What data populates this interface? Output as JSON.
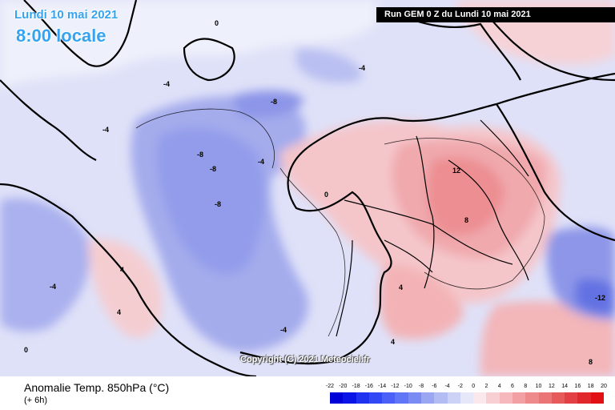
{
  "header": {
    "date": "Lundi 10 mai 2021",
    "local_time": "8:00 locale",
    "run": "Run GEM 0 Z du Lundi 10 mai 2021"
  },
  "map": {
    "copyright": "Copyright (C) 2021 Meteociel.fr",
    "labels": [
      "0",
      "-4",
      "-8",
      "-12",
      "4",
      "8",
      "12",
      "0",
      "-4",
      "-8",
      "4",
      "-4",
      "-8",
      "-4",
      "4",
      "8",
      "0",
      "-4",
      "4",
      "-4",
      "-8"
    ]
  },
  "footer": {
    "parameter": "Anomalie Temp. 850hPa (°C)",
    "step": "(+ 6h)"
  },
  "legend": {
    "ticks": [
      "-22",
      "-20",
      "-18",
      "-16",
      "-14",
      "-12",
      "-10",
      "-8",
      "-6",
      "-4",
      "-2",
      "0",
      "2",
      "4",
      "6",
      "8",
      "10",
      "12",
      "14",
      "16",
      "18",
      "20"
    ],
    "colors": [
      "#0000d8",
      "#0a14e6",
      "#1e32f0",
      "#3248f4",
      "#4a60f6",
      "#6076f6",
      "#7a8cf4",
      "#9aa6f2",
      "#b4bcf4",
      "#ccd2f6",
      "#e6e8fa",
      "#fbe8ec",
      "#f8d0d4",
      "#f6b8bc",
      "#f2a0a4",
      "#ee8a8c",
      "#ea7476",
      "#e65a5c",
      "#e24044",
      "#e0282c",
      "#e01014"
    ]
  }
}
